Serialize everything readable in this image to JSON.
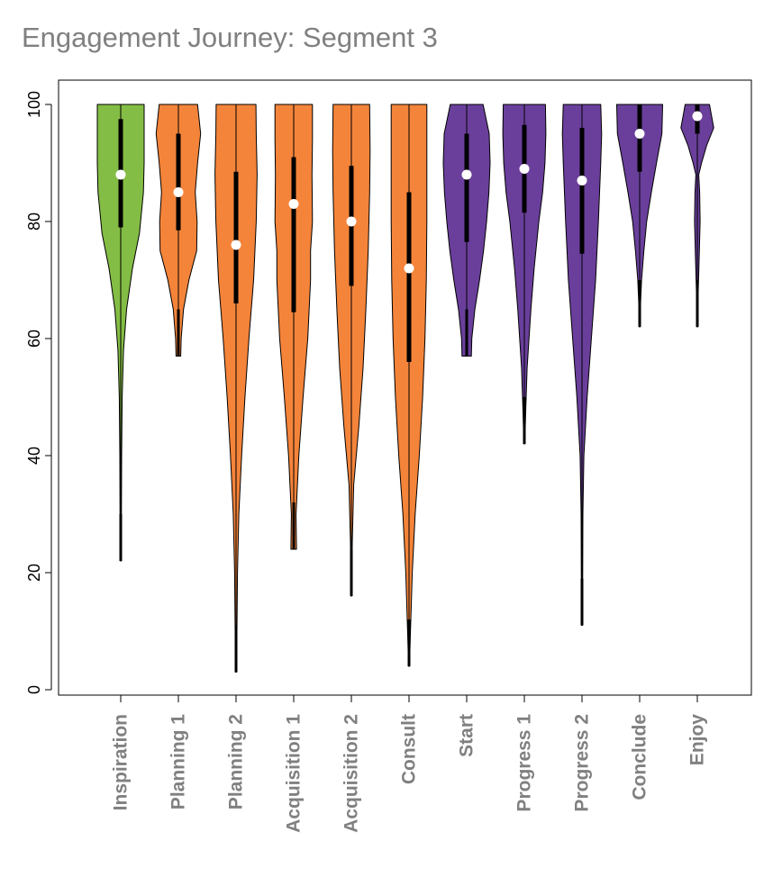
{
  "chart_data": {
    "type": "violin",
    "title": "Engagement Journey: Segment 3",
    "xlabel": "",
    "ylabel": "",
    "ylim": [
      0,
      100
    ],
    "yticks": [
      0,
      20,
      40,
      60,
      80,
      100
    ],
    "colors": {
      "green": "#84bd45",
      "orange": "#f4843a",
      "purple": "#6a3f9b",
      "outline": "#000000",
      "median": "#ffffff"
    },
    "categories": [
      "Inspiration",
      "Planning 1",
      "Planning 2",
      "Acquisition 1",
      "Acquisition 2",
      "Consult",
      "Start",
      "Progress 1",
      "Progress 2",
      "Conclude",
      "Enjoy"
    ],
    "series": [
      {
        "name": "Inspiration",
        "color": "green",
        "min": 22,
        "q1": 79,
        "median": 88,
        "q3": 97.5,
        "max": 100,
        "density": [
          [
            22,
            0.02
          ],
          [
            30,
            0.03
          ],
          [
            40,
            0.04
          ],
          [
            50,
            0.06
          ],
          [
            58,
            0.12
          ],
          [
            65,
            0.25
          ],
          [
            72,
            0.5
          ],
          [
            78,
            0.8
          ],
          [
            85,
            0.97
          ],
          [
            90,
            1.0
          ],
          [
            95,
            1.0
          ],
          [
            100,
            1.0
          ]
        ]
      },
      {
        "name": "Planning 1",
        "color": "orange",
        "min": 57,
        "q1": 78.5,
        "median": 85,
        "q3": 95,
        "max": 100,
        "density": [
          [
            57,
            0.1
          ],
          [
            60,
            0.12
          ],
          [
            65,
            0.22
          ],
          [
            70,
            0.45
          ],
          [
            75,
            0.78
          ],
          [
            80,
            0.8
          ],
          [
            85,
            0.72
          ],
          [
            90,
            0.82
          ],
          [
            95,
            0.95
          ],
          [
            100,
            0.82
          ]
        ]
      },
      {
        "name": "Planning 2",
        "color": "orange",
        "min": 3,
        "q1": 66,
        "median": 76,
        "q3": 88.5,
        "max": 100,
        "density": [
          [
            3,
            0.02
          ],
          [
            10,
            0.04
          ],
          [
            20,
            0.06
          ],
          [
            30,
            0.12
          ],
          [
            40,
            0.24
          ],
          [
            50,
            0.38
          ],
          [
            60,
            0.55
          ],
          [
            70,
            0.75
          ],
          [
            80,
            0.86
          ],
          [
            88,
            0.9
          ],
          [
            95,
            0.86
          ],
          [
            100,
            0.85
          ]
        ]
      },
      {
        "name": "Acquisition 1",
        "color": "orange",
        "min": 24,
        "q1": 64.5,
        "median": 83,
        "q3": 91,
        "max": 100,
        "density": [
          [
            24,
            0.12
          ],
          [
            30,
            0.1
          ],
          [
            40,
            0.22
          ],
          [
            50,
            0.4
          ],
          [
            60,
            0.6
          ],
          [
            70,
            0.72
          ],
          [
            75,
            0.72
          ],
          [
            80,
            0.8
          ],
          [
            88,
            0.78
          ],
          [
            94,
            0.8
          ],
          [
            100,
            0.8
          ]
        ]
      },
      {
        "name": "Acquisition 2",
        "color": "orange",
        "min": 16,
        "q1": 69,
        "median": 80,
        "q3": 89.5,
        "max": 100,
        "density": [
          [
            16,
            0.02
          ],
          [
            25,
            0.04
          ],
          [
            35,
            0.1
          ],
          [
            45,
            0.32
          ],
          [
            55,
            0.5
          ],
          [
            65,
            0.62
          ],
          [
            75,
            0.72
          ],
          [
            85,
            0.78
          ],
          [
            92,
            0.8
          ],
          [
            100,
            0.78
          ]
        ]
      },
      {
        "name": "Consult",
        "color": "orange",
        "min": 4,
        "q1": 56,
        "median": 72,
        "q3": 85,
        "max": 100,
        "density": [
          [
            4,
            0.02
          ],
          [
            10,
            0.06
          ],
          [
            20,
            0.14
          ],
          [
            30,
            0.26
          ],
          [
            40,
            0.44
          ],
          [
            50,
            0.58
          ],
          [
            60,
            0.68
          ],
          [
            70,
            0.74
          ],
          [
            80,
            0.76
          ],
          [
            90,
            0.76
          ],
          [
            100,
            0.76
          ]
        ]
      },
      {
        "name": "Start",
        "color": "purple",
        "min": 57,
        "q1": 76.5,
        "median": 88,
        "q3": 95,
        "max": 100,
        "density": [
          [
            57,
            0.2
          ],
          [
            60,
            0.22
          ],
          [
            65,
            0.35
          ],
          [
            70,
            0.55
          ],
          [
            75,
            0.72
          ],
          [
            80,
            0.85
          ],
          [
            85,
            0.95
          ],
          [
            90,
            1.0
          ],
          [
            95,
            0.96
          ],
          [
            100,
            0.7
          ]
        ]
      },
      {
        "name": "Progress 1",
        "color": "purple",
        "min": 42,
        "q1": 81.5,
        "median": 89,
        "q3": 96.5,
        "max": 100,
        "density": [
          [
            42,
            0.02
          ],
          [
            48,
            0.06
          ],
          [
            55,
            0.12
          ],
          [
            60,
            0.2
          ],
          [
            65,
            0.28
          ],
          [
            72,
            0.42
          ],
          [
            80,
            0.62
          ],
          [
            85,
            0.78
          ],
          [
            90,
            0.88
          ],
          [
            95,
            0.92
          ],
          [
            100,
            0.9
          ]
        ]
      },
      {
        "name": "Progress 2",
        "color": "purple",
        "min": 11,
        "q1": 74.5,
        "median": 87,
        "q3": 96,
        "max": 100,
        "density": [
          [
            11,
            0.02
          ],
          [
            20,
            0.03
          ],
          [
            30,
            0.04
          ],
          [
            40,
            0.08
          ],
          [
            50,
            0.22
          ],
          [
            60,
            0.4
          ],
          [
            70,
            0.58
          ],
          [
            80,
            0.7
          ],
          [
            90,
            0.8
          ],
          [
            95,
            0.84
          ],
          [
            100,
            0.8
          ]
        ]
      },
      {
        "name": "Conclude",
        "color": "purple",
        "min": 62,
        "q1": 88.5,
        "median": 95,
        "q3": 100,
        "max": 100,
        "density": [
          [
            62,
            0.02
          ],
          [
            66,
            0.04
          ],
          [
            70,
            0.08
          ],
          [
            75,
            0.18
          ],
          [
            80,
            0.3
          ],
          [
            85,
            0.5
          ],
          [
            90,
            0.72
          ],
          [
            95,
            0.95
          ],
          [
            100,
            0.98
          ]
        ]
      },
      {
        "name": "Enjoy",
        "color": "purple",
        "min": 62,
        "q1": 95,
        "median": 98,
        "q3": 100,
        "max": 100,
        "density": [
          [
            62,
            0.02
          ],
          [
            68,
            0.04
          ],
          [
            74,
            0.08
          ],
          [
            80,
            0.12
          ],
          [
            85,
            0.1
          ],
          [
            88,
            0.06
          ],
          [
            90,
            0.18
          ],
          [
            93,
            0.4
          ],
          [
            96,
            0.7
          ],
          [
            100,
            0.52
          ]
        ]
      }
    ]
  }
}
